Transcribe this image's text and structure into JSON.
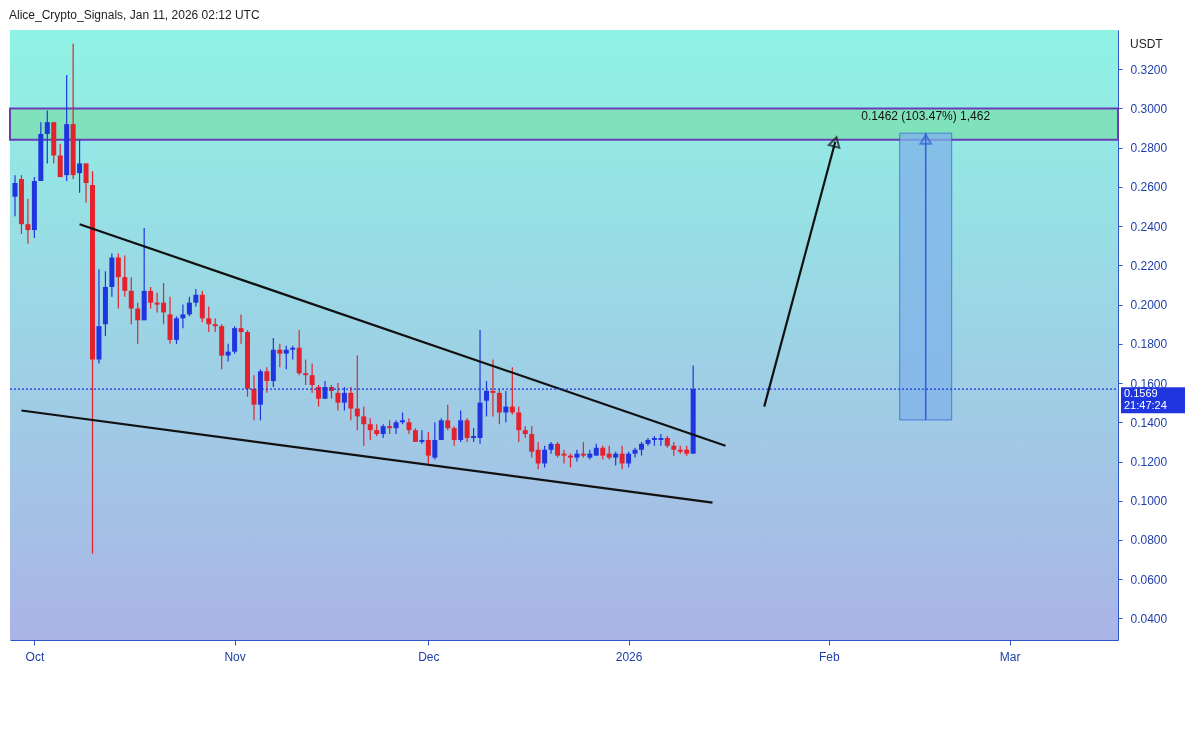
{
  "chart_data": {
    "type": "candlestick",
    "title": "Alice_Crypto_Signals, Jan 11, 2026 02:12 UTC",
    "ylabel": "USDT",
    "x": [
      "2025-09-28",
      "2025-09-29",
      "2025-09-30",
      "2025-10-01",
      "2025-10-02",
      "2025-10-03",
      "2025-10-04",
      "2025-10-05",
      "2025-10-06",
      "2025-10-07",
      "2025-10-08",
      "2025-10-09",
      "2025-10-10",
      "2025-10-11",
      "2025-10-12",
      "2025-10-13",
      "2025-10-14",
      "2025-10-15",
      "2025-10-16",
      "2025-10-17",
      "2025-10-18",
      "2025-10-19",
      "2025-10-20",
      "2025-10-21",
      "2025-10-22",
      "2025-10-23",
      "2025-10-24",
      "2025-10-25",
      "2025-10-26",
      "2025-10-27",
      "2025-10-28",
      "2025-10-29",
      "2025-10-30",
      "2025-10-31",
      "2025-11-01",
      "2025-11-02",
      "2025-11-03",
      "2025-11-04",
      "2025-11-05",
      "2025-11-06",
      "2025-11-07",
      "2025-11-08",
      "2025-11-09",
      "2025-11-10",
      "2025-11-11",
      "2025-11-12",
      "2025-11-13",
      "2025-11-14",
      "2025-11-15",
      "2025-11-16",
      "2025-11-17",
      "2025-11-18",
      "2025-11-19",
      "2025-11-20",
      "2025-11-21",
      "2025-11-22",
      "2025-11-23",
      "2025-11-24",
      "2025-11-25",
      "2025-11-26",
      "2025-11-27",
      "2025-11-28",
      "2025-11-29",
      "2025-11-30",
      "2025-12-01",
      "2025-12-02",
      "2025-12-03",
      "2025-12-04",
      "2025-12-05",
      "2025-12-06",
      "2025-12-07",
      "2025-12-08",
      "2025-12-09",
      "2025-12-10",
      "2025-12-11",
      "2025-12-12",
      "2025-12-13",
      "2025-12-14",
      "2025-12-15",
      "2025-12-16",
      "2025-12-17",
      "2025-12-18",
      "2025-12-19",
      "2025-12-20",
      "2025-12-21",
      "2025-12-22",
      "2025-12-23",
      "2025-12-24",
      "2025-12-25",
      "2025-12-26",
      "2025-12-27",
      "2025-12-28",
      "2025-12-29",
      "2025-12-30",
      "2025-12-31",
      "2026-01-01",
      "2026-01-02",
      "2026-01-03",
      "2026-01-04",
      "2026-01-05",
      "2026-01-06",
      "2026-01-07",
      "2026-01-08",
      "2026-01-09",
      "2026-01-10",
      "2026-01-11"
    ],
    "ohlc": [
      [
        0.255,
        0.266,
        0.245,
        0.262
      ],
      [
        0.264,
        0.266,
        0.236,
        0.241
      ],
      [
        0.241,
        0.254,
        0.231,
        0.238
      ],
      [
        0.238,
        0.265,
        0.234,
        0.263
      ],
      [
        0.263,
        0.293,
        0.263,
        0.287
      ],
      [
        0.287,
        0.299,
        0.272,
        0.293
      ],
      [
        0.293,
        0.293,
        0.272,
        0.276
      ],
      [
        0.276,
        0.282,
        0.265,
        0.265
      ],
      [
        0.266,
        0.317,
        0.263,
        0.292
      ],
      [
        0.292,
        0.333,
        0.264,
        0.266
      ],
      [
        0.267,
        0.284,
        0.257,
        0.272
      ],
      [
        0.272,
        0.272,
        0.252,
        0.262
      ],
      [
        0.261,
        0.268,
        0.073,
        0.172
      ],
      [
        0.172,
        0.218,
        0.17,
        0.189
      ],
      [
        0.19,
        0.217,
        0.184,
        0.209
      ],
      [
        0.209,
        0.226,
        0.204,
        0.224
      ],
      [
        0.224,
        0.226,
        0.198,
        0.214
      ],
      [
        0.214,
        0.225,
        0.204,
        0.207
      ],
      [
        0.207,
        0.214,
        0.19,
        0.198
      ],
      [
        0.198,
        0.201,
        0.18,
        0.192
      ],
      [
        0.192,
        0.239,
        0.192,
        0.207
      ],
      [
        0.207,
        0.209,
        0.198,
        0.201
      ],
      [
        0.201,
        0.206,
        0.196,
        0.2
      ],
      [
        0.201,
        0.211,
        0.19,
        0.196
      ],
      [
        0.195,
        0.204,
        0.18,
        0.182
      ],
      [
        0.182,
        0.194,
        0.18,
        0.193
      ],
      [
        0.193,
        0.2,
        0.188,
        0.195
      ],
      [
        0.195,
        0.204,
        0.194,
        0.201
      ],
      [
        0.201,
        0.208,
        0.199,
        0.205
      ],
      [
        0.205,
        0.207,
        0.191,
        0.193
      ],
      [
        0.193,
        0.199,
        0.186,
        0.19
      ],
      [
        0.19,
        0.193,
        0.186,
        0.189
      ],
      [
        0.189,
        0.19,
        0.167,
        0.174
      ],
      [
        0.174,
        0.18,
        0.171,
        0.176
      ],
      [
        0.176,
        0.189,
        0.175,
        0.188
      ],
      [
        0.188,
        0.195,
        0.18,
        0.186
      ],
      [
        0.186,
        0.187,
        0.153,
        0.157
      ],
      [
        0.157,
        0.164,
        0.141,
        0.149
      ],
      [
        0.149,
        0.167,
        0.141,
        0.166
      ],
      [
        0.166,
        0.168,
        0.155,
        0.161
      ],
      [
        0.161,
        0.183,
        0.158,
        0.177
      ],
      [
        0.177,
        0.18,
        0.168,
        0.175
      ],
      [
        0.175,
        0.179,
        0.167,
        0.177
      ],
      [
        0.177,
        0.179,
        0.172,
        0.178
      ],
      [
        0.178,
        0.187,
        0.164,
        0.165
      ],
      [
        0.165,
        0.172,
        0.159,
        0.164
      ],
      [
        0.164,
        0.17,
        0.155,
        0.159
      ],
      [
        0.158,
        0.159,
        0.148,
        0.152
      ],
      [
        0.152,
        0.161,
        0.152,
        0.158
      ],
      [
        0.158,
        0.159,
        0.152,
        0.156
      ],
      [
        0.155,
        0.16,
        0.146,
        0.15
      ],
      [
        0.15,
        0.158,
        0.146,
        0.155
      ],
      [
        0.155,
        0.158,
        0.141,
        0.147
      ],
      [
        0.147,
        0.174,
        0.136,
        0.143
      ],
      [
        0.143,
        0.148,
        0.128,
        0.139
      ],
      [
        0.139,
        0.142,
        0.131,
        0.136
      ],
      [
        0.136,
        0.139,
        0.133,
        0.134
      ],
      [
        0.134,
        0.139,
        0.132,
        0.138
      ],
      [
        0.138,
        0.141,
        0.134,
        0.137
      ],
      [
        0.137,
        0.141,
        0.134,
        0.14
      ],
      [
        0.14,
        0.145,
        0.139,
        0.141
      ],
      [
        0.14,
        0.142,
        0.134,
        0.136
      ],
      [
        0.136,
        0.137,
        0.13,
        0.13
      ],
      [
        0.13,
        0.136,
        0.129,
        0.131
      ],
      [
        0.131,
        0.135,
        0.119,
        0.123
      ],
      [
        0.122,
        0.14,
        0.121,
        0.131
      ],
      [
        0.131,
        0.142,
        0.131,
        0.141
      ],
      [
        0.141,
        0.149,
        0.136,
        0.137
      ],
      [
        0.137,
        0.138,
        0.128,
        0.131
      ],
      [
        0.131,
        0.146,
        0.13,
        0.141
      ],
      [
        0.141,
        0.142,
        0.13,
        0.132
      ],
      [
        0.132,
        0.137,
        0.13,
        0.133
      ],
      [
        0.132,
        0.187,
        0.129,
        0.15
      ],
      [
        0.151,
        0.161,
        0.143,
        0.156
      ],
      [
        0.156,
        0.172,
        0.143,
        0.155
      ],
      [
        0.155,
        0.157,
        0.139,
        0.145
      ],
      [
        0.145,
        0.156,
        0.14,
        0.148
      ],
      [
        0.148,
        0.168,
        0.144,
        0.145
      ],
      [
        0.145,
        0.148,
        0.13,
        0.136
      ],
      [
        0.136,
        0.138,
        0.132,
        0.134
      ],
      [
        0.134,
        0.138,
        0.122,
        0.125
      ],
      [
        0.126,
        0.13,
        0.116,
        0.119
      ],
      [
        0.119,
        0.128,
        0.117,
        0.126
      ],
      [
        0.126,
        0.13,
        0.124,
        0.129
      ],
      [
        0.129,
        0.13,
        0.122,
        0.123
      ],
      [
        0.124,
        0.126,
        0.119,
        0.123
      ],
      [
        0.123,
        0.124,
        0.117,
        0.122
      ],
      [
        0.122,
        0.126,
        0.12,
        0.124
      ],
      [
        0.124,
        0.13,
        0.122,
        0.123
      ],
      [
        0.122,
        0.126,
        0.121,
        0.124
      ],
      [
        0.123,
        0.129,
        0.123,
        0.127
      ],
      [
        0.127,
        0.128,
        0.121,
        0.123
      ],
      [
        0.124,
        0.128,
        0.121,
        0.122
      ],
      [
        0.122,
        0.125,
        0.118,
        0.124
      ],
      [
        0.124,
        0.128,
        0.116,
        0.119
      ],
      [
        0.119,
        0.125,
        0.117,
        0.124
      ],
      [
        0.124,
        0.127,
        0.122,
        0.126
      ],
      [
        0.126,
        0.13,
        0.123,
        0.129
      ],
      [
        0.129,
        0.132,
        0.128,
        0.131
      ],
      [
        0.131,
        0.133,
        0.128,
        0.132
      ],
      [
        0.131,
        0.134,
        0.128,
        0.132
      ],
      [
        0.132,
        0.133,
        0.127,
        0.128
      ],
      [
        0.128,
        0.13,
        0.123,
        0.126
      ],
      [
        0.126,
        0.128,
        0.124,
        0.125
      ],
      [
        0.126,
        0.128,
        0.123,
        0.124
      ],
      [
        0.124,
        0.169,
        0.124,
        0.1569
      ]
    ],
    "colors": [
      "#1f35e0",
      "#e3222d",
      "#e3222d",
      "#1f35e0",
      "#1f35e0",
      "#1f35e0",
      "#e3222d",
      "#e3222d",
      "#1f35e0",
      "#e3222d",
      "#1f35e0",
      "#e3222d",
      "#e3222d",
      "#1f35e0",
      "#1f35e0",
      "#1f35e0",
      "#e3222d",
      "#e3222d",
      "#e3222d",
      "#e3222d",
      "#1f35e0",
      "#e3222d",
      "#e3222d",
      "#e3222d",
      "#e3222d",
      "#1f35e0",
      "#1f35e0",
      "#1f35e0",
      "#1f35e0",
      "#e3222d",
      "#e3222d",
      "#e3222d",
      "#e3222d",
      "#1f35e0",
      "#1f35e0",
      "#e3222d",
      "#e3222d",
      "#e3222d",
      "#1f35e0",
      "#e3222d",
      "#1f35e0",
      "#e3222d",
      "#1f35e0",
      "#1f35e0",
      "#e3222d",
      "#e3222d",
      "#e3222d",
      "#e3222d",
      "#1f35e0",
      "#e3222d",
      "#e3222d",
      "#1f35e0",
      "#e3222d",
      "#e3222d",
      "#e3222d",
      "#e3222d",
      "#e3222d",
      "#1f35e0",
      "#e3222d",
      "#1f35e0",
      "#1f35e0",
      "#e3222d",
      "#e3222d",
      "#1f35e0",
      "#e3222d",
      "#1f35e0",
      "#1f35e0",
      "#e3222d",
      "#e3222d",
      "#1f35e0",
      "#e3222d",
      "#1f35e0",
      "#1f35e0",
      "#1f35e0",
      "#e3222d",
      "#e3222d",
      "#1f35e0",
      "#e3222d",
      "#e3222d",
      "#e3222d",
      "#e3222d",
      "#e3222d",
      "#1f35e0",
      "#1f35e0",
      "#e3222d",
      "#e3222d",
      "#e3222d",
      "#1f35e0",
      "#e3222d",
      "#1f35e0",
      "#1f35e0",
      "#e3222d",
      "#e3222d",
      "#1f35e0",
      "#e3222d",
      "#1f35e0",
      "#1f35e0",
      "#1f35e0",
      "#1f35e0",
      "#1f35e0",
      "#1f35e0",
      "#e3222d",
      "#e3222d",
      "#e3222d",
      "#e3222d",
      "#1f35e0"
    ],
    "series": [
      {
        "type": "line",
        "color": "#111111",
        "x": [
          "2025-10-08",
          "2026-01-16"
        ],
        "values": [
          0.241,
          0.128
        ],
        "marker": "none"
      },
      {
        "type": "line",
        "color": "#111111",
        "x": [
          "2025-09-29",
          "2026-01-14"
        ],
        "values": [
          0.146,
          0.099
        ],
        "marker": "none"
      },
      {
        "type": "line",
        "color": "#111111",
        "x": [
          "2026-01-22",
          "2026-02-02"
        ],
        "values": [
          0.148,
          0.283
        ],
        "marker": "triangle"
      },
      {
        "type": "bar",
        "color": "#7fb2ea",
        "x": [
          "2026-02-16"
        ],
        "base": [
          0.1412
        ],
        "values": [
          0.1462
        ]
      }
    ],
    "bands": [
      {
        "axis": "y",
        "from": 0.284,
        "to": 0.3,
        "color": "#7fe2bd"
      }
    ],
    "ref_lines": [
      {
        "axis": "y",
        "value": 0.1569,
        "label": "0.1569",
        "color": "#1f35e0",
        "line_style": "dotted"
      }
    ],
    "annotations": [
      {
        "text": "0.1462 (103.47%) 1,462",
        "x": "2026-02-16",
        "y": 0.2874
      },
      "21:47:24"
    ],
    "xlim": [
      "2025-09-28",
      "2026-03-17"
    ],
    "xticks": [
      {
        "value": "2025-10-01",
        "label": "Oct"
      },
      {
        "value": "2025-11-01",
        "label": "Nov"
      },
      {
        "value": "2025-12-01",
        "label": "Dec"
      },
      {
        "value": "2026-01-01",
        "label": "2026"
      },
      {
        "value": "2026-02-01",
        "label": "Feb"
      },
      {
        "value": "2026-03-01",
        "label": "Mar"
      }
    ],
    "ylim": [
      0.029,
      0.34
    ],
    "yticks": [
      {
        "value": 0.04,
        "label": "0.0400"
      },
      {
        "value": 0.06,
        "label": "0.0600"
      },
      {
        "value": 0.08,
        "label": "0.0800"
      },
      {
        "value": 0.1,
        "label": "0.1000"
      },
      {
        "value": 0.12,
        "label": "0.1200"
      },
      {
        "value": 0.14,
        "label": "0.1400"
      },
      {
        "value": 0.16,
        "label": "0.1600"
      },
      {
        "value": 0.18,
        "label": "0.1800"
      },
      {
        "value": 0.2,
        "label": "0.2000"
      },
      {
        "value": 0.22,
        "label": "0.2200"
      },
      {
        "value": 0.24,
        "label": "0.2400"
      },
      {
        "value": 0.26,
        "label": "0.2600"
      },
      {
        "value": 0.28,
        "label": "0.2800"
      },
      {
        "value": 0.3,
        "label": "0.3000"
      },
      {
        "value": 0.32,
        "label": "0.3200"
      }
    ]
  }
}
